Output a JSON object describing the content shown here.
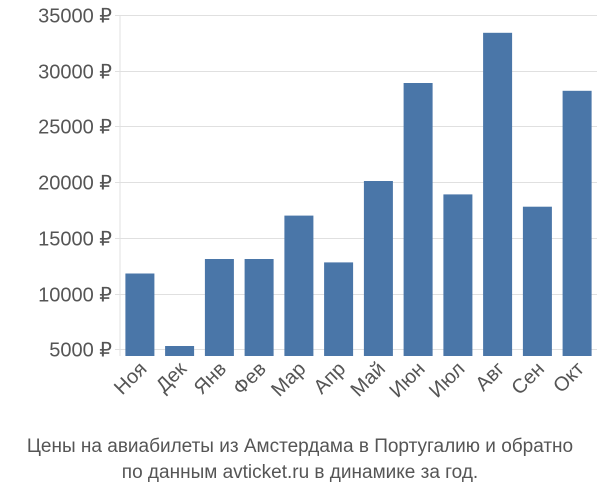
{
  "chart_data": {
    "type": "bar",
    "categories": [
      "Ноя",
      "Дек",
      "Янв",
      "Фев",
      "Мар",
      "Апр",
      "Май",
      "Июн",
      "Июл",
      "Авг",
      "Сен",
      "Окт"
    ],
    "values": [
      11800,
      5300,
      13100,
      13100,
      17000,
      12800,
      20100,
      28900,
      18900,
      33400,
      17800,
      28200
    ],
    "ylim": [
      4400,
      35000
    ],
    "yticks": [
      5000,
      10000,
      15000,
      20000,
      25000,
      30000,
      35000
    ],
    "ytick_labels": [
      "5000 ₽",
      "10000 ₽",
      "15000 ₽",
      "20000 ₽",
      "25000 ₽",
      "30000 ₽",
      "35000 ₽"
    ],
    "grid": true,
    "bar_color": "#4a76a8",
    "grid_color": "#e0e0e0",
    "label_color": "#555555"
  },
  "caption": {
    "line1": "Цены на авиабилеты из Амстердама в Португалию и обратно",
    "line2": "по данным avticket.ru в динамике за год."
  }
}
